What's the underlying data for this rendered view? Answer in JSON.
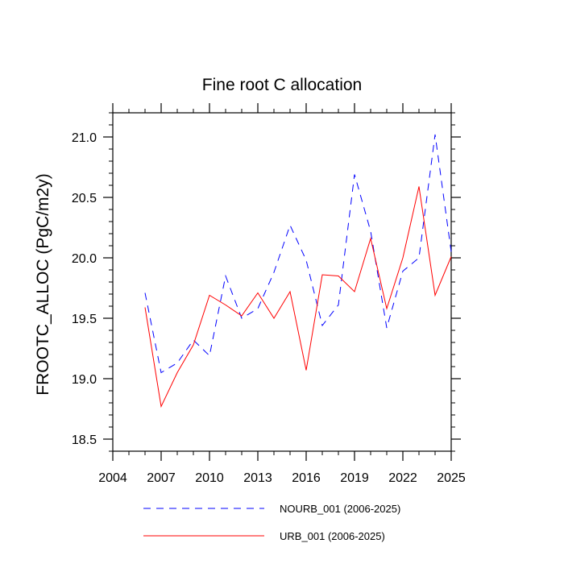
{
  "chart_data": {
    "type": "line",
    "title": "Fine root C allocation",
    "xlabel": "",
    "ylabel": "FROOTC_ALLOC  (PgC/m2y)",
    "xlim": [
      2004,
      2025
    ],
    "ylim": [
      18.4,
      21.2
    ],
    "xticks": [
      2004,
      2007,
      2010,
      2013,
      2016,
      2019,
      2022,
      2025
    ],
    "xtick_labels": [
      "2004",
      "2007",
      "2010",
      "2013",
      "2016",
      "2019",
      "2022",
      "2025"
    ],
    "yticks": [
      18.5,
      19.0,
      19.5,
      20.0,
      20.5,
      21.0
    ],
    "ytick_labels": [
      "18.5",
      "19.0",
      "19.5",
      "20.0",
      "20.5",
      "21.0"
    ],
    "x": [
      2006,
      2007,
      2008,
      2009,
      2010,
      2011,
      2012,
      2013,
      2014,
      2015,
      2016,
      2017,
      2018,
      2019,
      2020,
      2021,
      2022,
      2023,
      2024,
      2025
    ],
    "series": [
      {
        "name": "NOURB_001 (2006-2025)",
        "color": "#0000ff",
        "dash": "dashed",
        "values": [
          19.71,
          19.05,
          19.13,
          19.32,
          19.19,
          19.85,
          19.5,
          19.58,
          19.88,
          20.27,
          19.98,
          19.44,
          19.61,
          20.69,
          20.22,
          19.42,
          19.89,
          20.0,
          21.02,
          20.05
        ]
      },
      {
        "name": "URB_001 (2006-2025)",
        "color": "#ff0000",
        "dash": "solid",
        "values": [
          19.59,
          18.77,
          19.05,
          19.28,
          19.69,
          19.61,
          19.52,
          19.71,
          19.5,
          19.72,
          19.07,
          19.86,
          19.85,
          19.72,
          20.16,
          19.58,
          20.0,
          20.59,
          19.69,
          20.01
        ]
      }
    ],
    "legend": {
      "placement": "bottom"
    }
  }
}
